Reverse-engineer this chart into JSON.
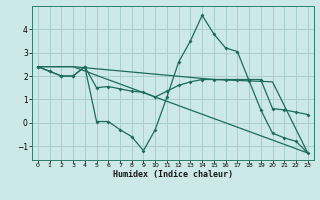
{
  "xlabel": "Humidex (Indice chaleur)",
  "background_color": "#cce8e8",
  "line_color": "#1e6b5e",
  "grid_color": "#aacfcf",
  "xlim": [
    -0.5,
    23.5
  ],
  "ylim": [
    -1.6,
    5.0
  ],
  "yticks": [
    -1,
    0,
    1,
    2,
    3,
    4
  ],
  "xticks": [
    0,
    1,
    2,
    3,
    4,
    5,
    6,
    7,
    8,
    9,
    10,
    11,
    12,
    13,
    14,
    15,
    16,
    17,
    18,
    19,
    20,
    21,
    22,
    23
  ],
  "line1_x": [
    0,
    1,
    2,
    3,
    4,
    5,
    6,
    7,
    8,
    9,
    10,
    11,
    12,
    13,
    14,
    15,
    16,
    17,
    18,
    19,
    20,
    21,
    22,
    23
  ],
  "line1_y": [
    2.4,
    2.2,
    2.0,
    2.0,
    2.4,
    0.05,
    0.05,
    -0.3,
    -0.6,
    -1.2,
    -0.3,
    1.1,
    2.6,
    3.5,
    4.6,
    3.8,
    3.2,
    3.05,
    1.8,
    0.55,
    -0.45,
    -0.65,
    -0.8,
    -1.3
  ],
  "line2_x": [
    0,
    1,
    2,
    3,
    4,
    5,
    6,
    7,
    8,
    9,
    10,
    11,
    12,
    13,
    14,
    15,
    16,
    17,
    18,
    19,
    20,
    21,
    22,
    23
  ],
  "line2_y": [
    2.4,
    2.2,
    2.0,
    2.0,
    2.4,
    1.5,
    1.55,
    1.45,
    1.35,
    1.3,
    1.1,
    1.35,
    1.6,
    1.75,
    1.85,
    1.85,
    1.85,
    1.85,
    1.85,
    1.85,
    0.6,
    0.55,
    0.45,
    0.35
  ],
  "line3_x": [
    0,
    3,
    10,
    23
  ],
  "line3_y": [
    2.4,
    2.4,
    1.1,
    -1.3
  ],
  "line4_x": [
    0,
    3,
    15,
    20,
    23
  ],
  "line4_y": [
    2.4,
    2.4,
    1.85,
    1.75,
    -1.3
  ]
}
